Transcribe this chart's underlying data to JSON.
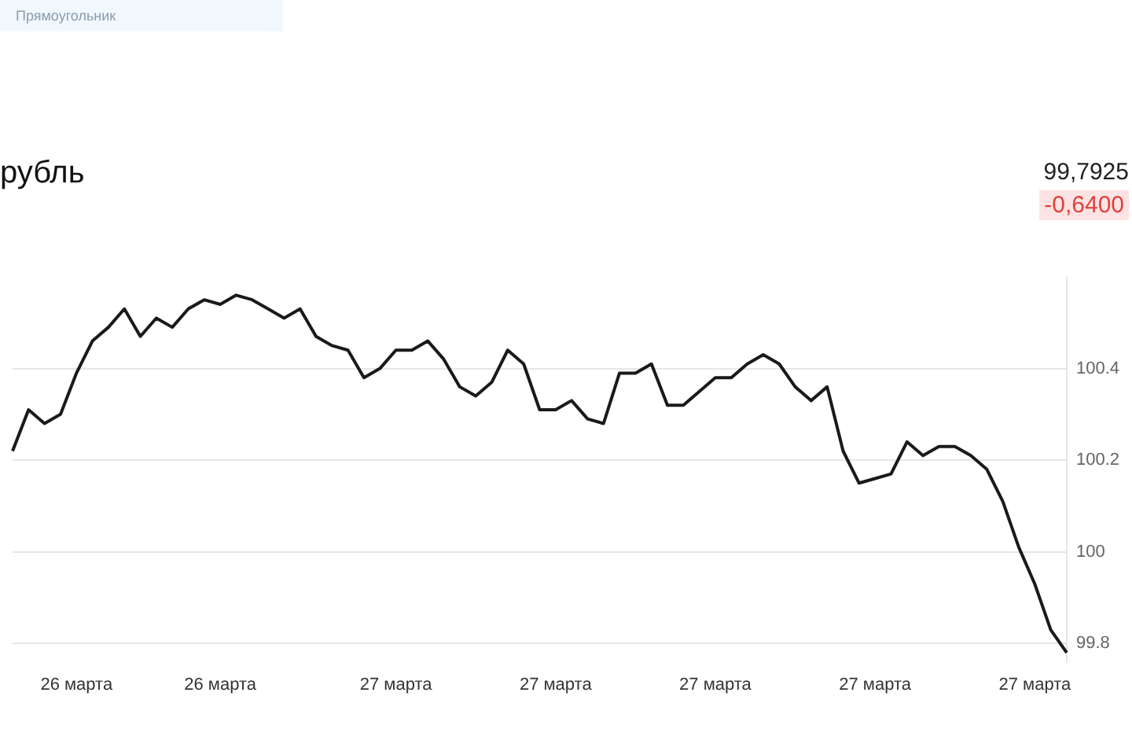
{
  "chart_data": {
    "type": "line",
    "title": "рубль",
    "annotations": [
      "Прямоугольник",
      "99,7925",
      "-0,6400"
    ],
    "categories": [
      null,
      null,
      null,
      null,
      "26 марта",
      null,
      null,
      null,
      null,
      null,
      null,
      null,
      null,
      "26 марта",
      null,
      null,
      null,
      null,
      null,
      null,
      null,
      null,
      null,
      null,
      "27 марта",
      null,
      null,
      null,
      null,
      null,
      null,
      null,
      null,
      null,
      "27 марта",
      null,
      null,
      null,
      null,
      null,
      null,
      null,
      null,
      null,
      "27 марта",
      null,
      null,
      null,
      null,
      null,
      null,
      null,
      null,
      null,
      "27 марта",
      null,
      null,
      null,
      null,
      null,
      null,
      null,
      null,
      null,
      "27 марта",
      null,
      null
    ],
    "series": [
      {
        "color": "#1a1a1a",
        "values": [
          100.22,
          100.31,
          100.28,
          100.3,
          100.39,
          100.46,
          100.49,
          100.53,
          100.47,
          100.51,
          100.49,
          100.53,
          100.55,
          100.54,
          100.56,
          100.55,
          100.53,
          100.51,
          100.53,
          100.47,
          100.45,
          100.44,
          100.38,
          100.4,
          100.44,
          100.44,
          100.46,
          100.42,
          100.36,
          100.34,
          100.37,
          100.44,
          100.41,
          100.31,
          100.31,
          100.33,
          100.29,
          100.28,
          100.39,
          100.39,
          100.41,
          100.32,
          100.32,
          100.35,
          100.38,
          100.38,
          100.41,
          100.43,
          100.41,
          100.36,
          100.33,
          100.36,
          100.22,
          100.15,
          100.16,
          100.17,
          100.24,
          100.21,
          100.23,
          100.23,
          100.21,
          100.18,
          100.11,
          100.01,
          99.93,
          99.83,
          99.78
        ]
      }
    ],
    "ylim": [
      99.76,
      100.6
    ],
    "yticks": [
      99.8,
      100,
      100.2,
      100.4
    ],
    "grid": "y",
    "legend": false,
    "marker": "none",
    "line_style": "solid"
  }
}
